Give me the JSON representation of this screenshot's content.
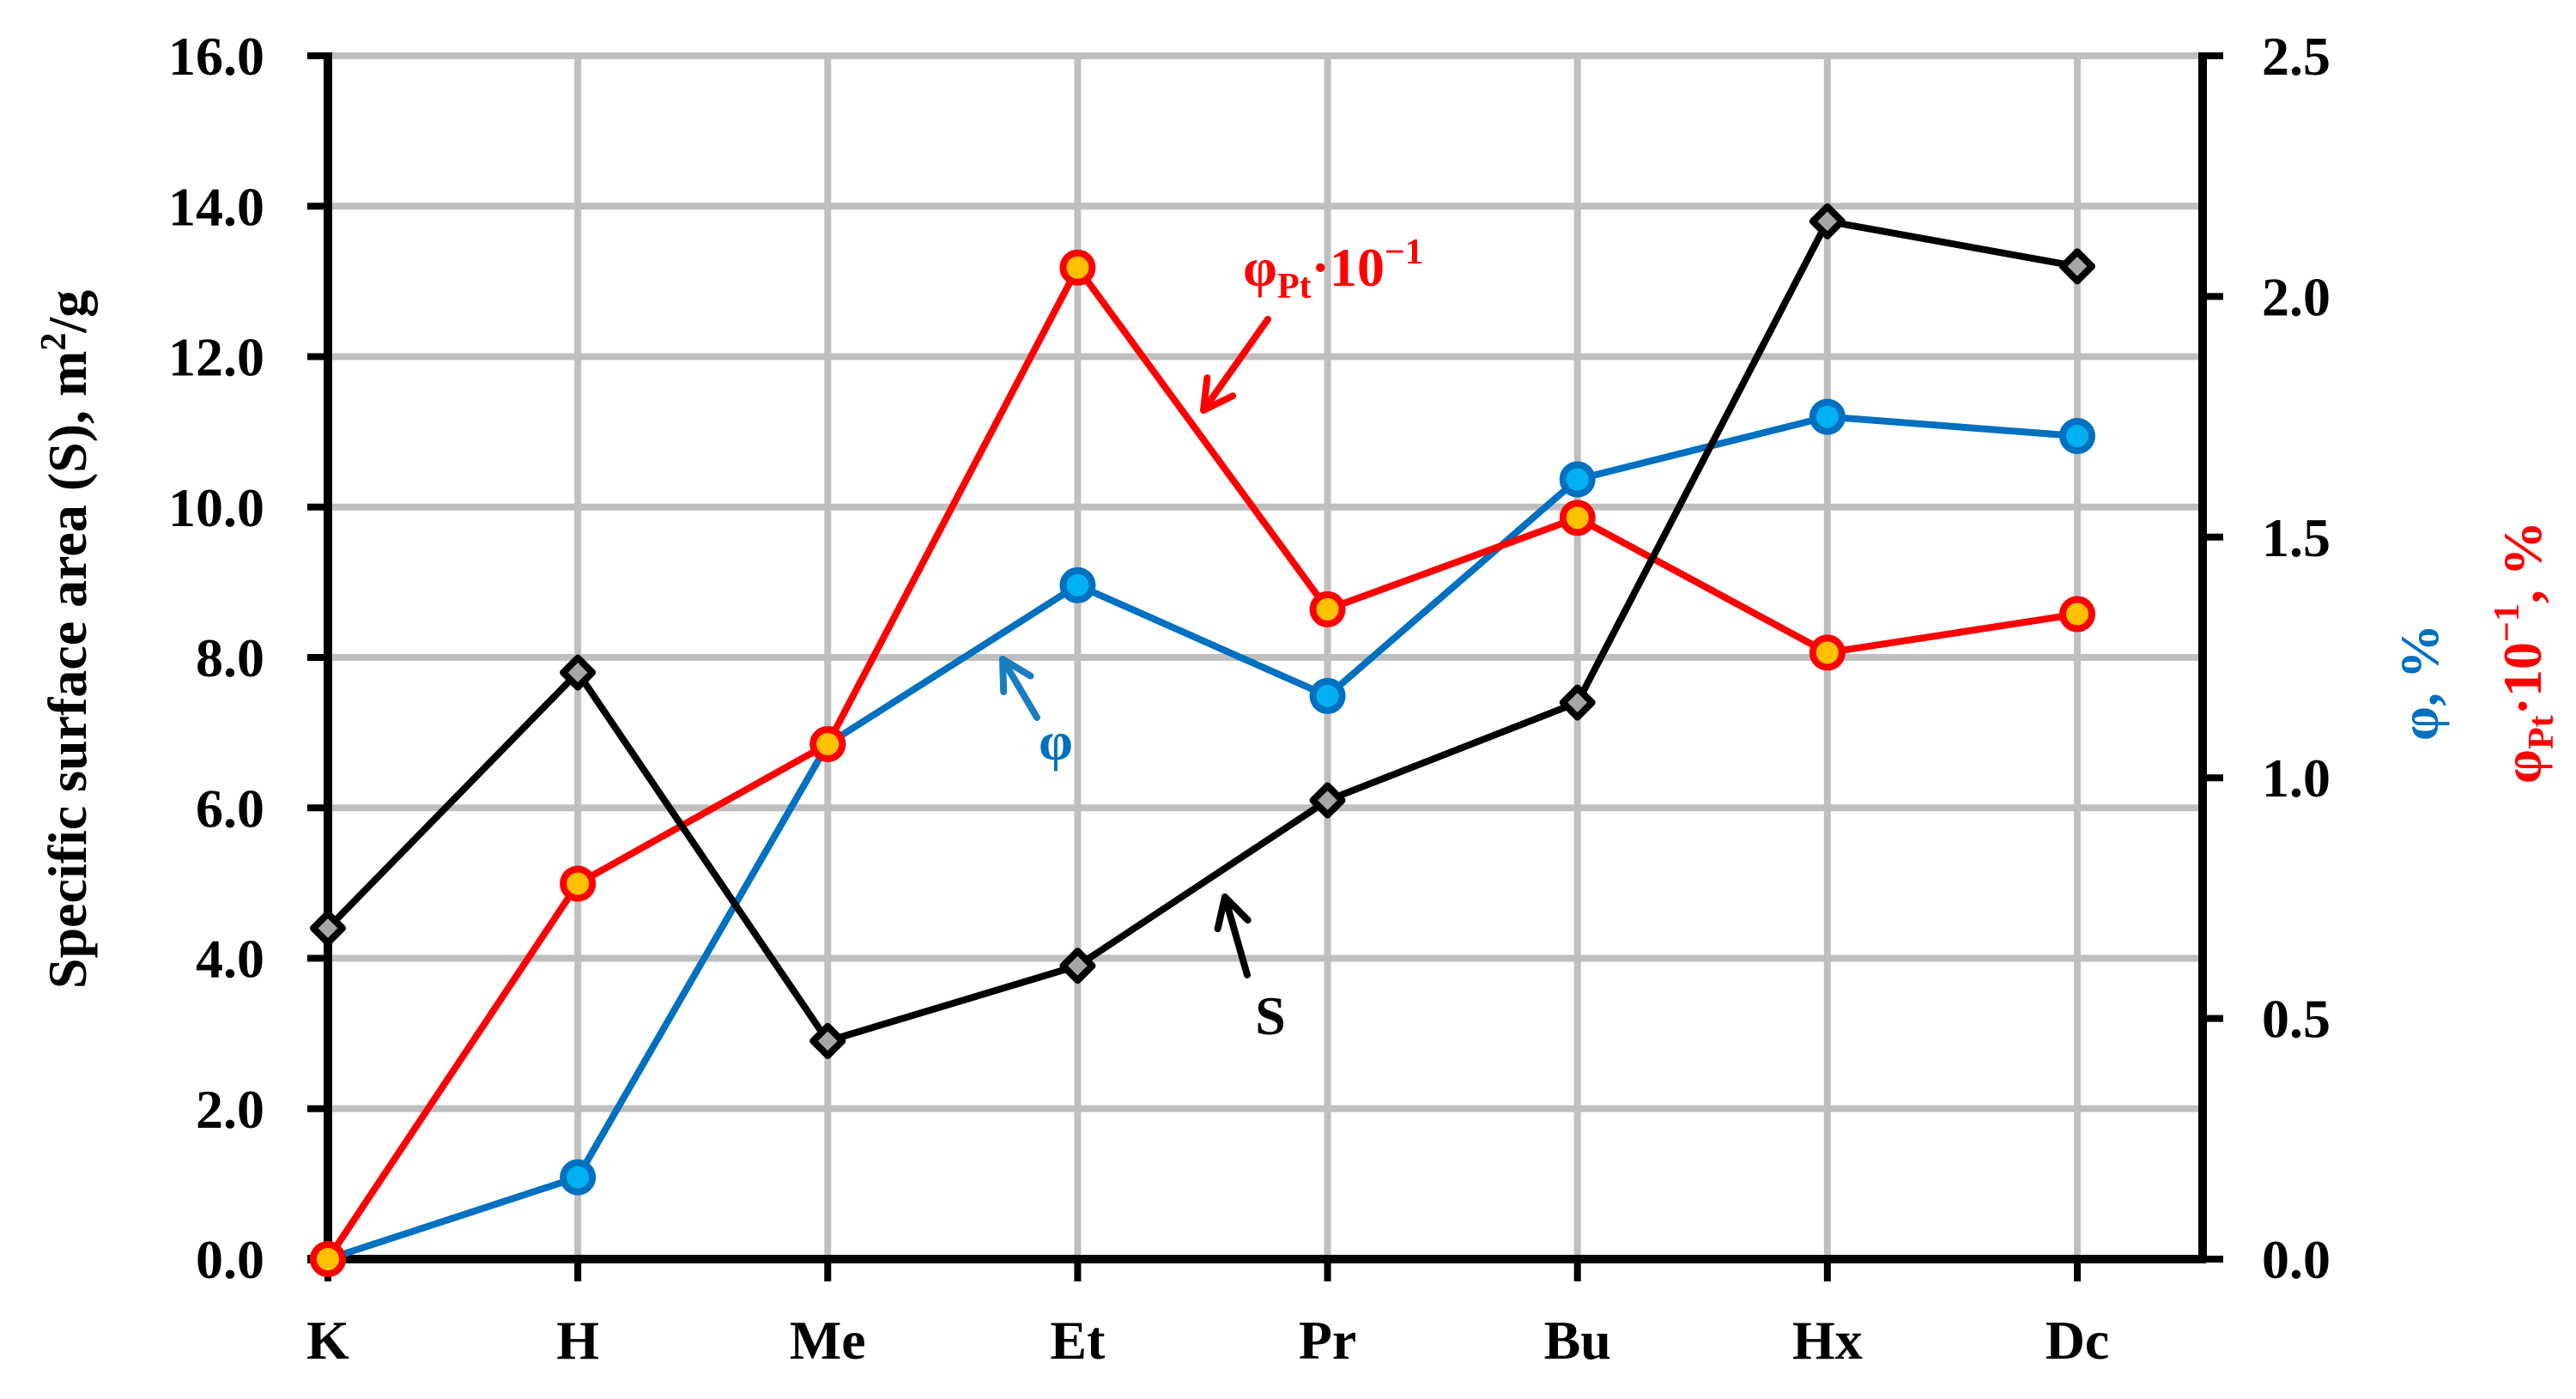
{
  "chart_data": {
    "type": "line",
    "title": "",
    "categories": [
      "K",
      "H",
      "Me",
      "Et",
      "Pr",
      "Bu",
      "Hx",
      "Dc"
    ],
    "xlabel": "",
    "ylabel": "Specific surface area (S), m²/g",
    "ylim": [
      0,
      16
    ],
    "yticks": [
      "0.0",
      "2.0",
      "4.0",
      "6.0",
      "8.0",
      "10.0",
      "12.0",
      "14.0",
      "16.0"
    ],
    "y2label_parts": [
      {
        "text": "φ, %",
        "color": "#0070c0"
      },
      {
        "text": "φPt·10⁻¹, %",
        "color": "#ff0000"
      }
    ],
    "y2lim": [
      0,
      2.5
    ],
    "y2ticks": [
      "0.0",
      "0.5",
      "1.0",
      "1.5",
      "2.0",
      "2.5"
    ],
    "grid": true,
    "legend": "none (inline arrow annotations)",
    "series": [
      {
        "name": "S",
        "axis": "left",
        "values": [
          4.4,
          7.8,
          2.9,
          3.9,
          6.1,
          7.4,
          13.8,
          13.2
        ],
        "line_color": "#000000",
        "marker": "diamond",
        "marker_fill": "#a6a6a6",
        "marker_stroke": "#000000"
      },
      {
        "name": "φ",
        "axis": "right",
        "values": [
          0.0,
          0.17,
          1.07,
          1.4,
          1.17,
          1.62,
          1.75,
          1.71
        ],
        "line_color": "#0070c0",
        "marker": "circle",
        "marker_fill": "#00b0f0",
        "marker_stroke": "#0070c0"
      },
      {
        "name": "φPt·10⁻¹",
        "axis": "right",
        "values": [
          0.0,
          0.78,
          1.07,
          2.06,
          1.35,
          1.54,
          1.26,
          1.34
        ],
        "line_color": "#ff0000",
        "marker": "circle",
        "marker_fill": "#ffc000",
        "marker_stroke": "#ff0000"
      }
    ],
    "annotations": [
      {
        "id": "S",
        "text": "S",
        "color": "#000000",
        "label_x": 1480,
        "label_y": 1205,
        "arrow_from": [
          1453,
          1136
        ],
        "arrow_to": [
          1427,
          1045
        ]
      },
      {
        "id": "phi",
        "text": "φ",
        "color": "#0070c0",
        "label_x": 1230,
        "label_y": 885,
        "arrow_from": [
          1208,
          836
        ],
        "arrow_to": [
          1168,
          768
        ]
      },
      {
        "id": "phiPt",
        "text": "φ",
        "sub": "Pt",
        "suffix": "·10",
        "sup": "−1",
        "color": "#ff0000",
        "label_x": 1448,
        "label_y": 333,
        "arrow_from": [
          1477,
          372
        ],
        "arrow_to": [
          1402,
          478
        ]
      }
    ]
  },
  "labels": {
    "y_title_main": "Specific surface area (S), m",
    "y_title_sup": "2",
    "y_title_end": "/g",
    "y2_phi": "φ, %",
    "y2_phipt_main": "φ",
    "y2_phipt_sub": "Pt",
    "y2_phipt_mid": "·10",
    "y2_phipt_sup": "−1",
    "y2_phipt_end": ", %",
    "annot_S": "S",
    "annot_phi": "φ",
    "annot_phipt_main": "φ",
    "annot_phipt_sub": "Pt",
    "annot_phipt_mid": "·10",
    "annot_phipt_sup": "−1"
  },
  "colors": {
    "grid": "#bfbfbf",
    "axis": "#000000",
    "phi_arrow": "#1a7dc0"
  }
}
